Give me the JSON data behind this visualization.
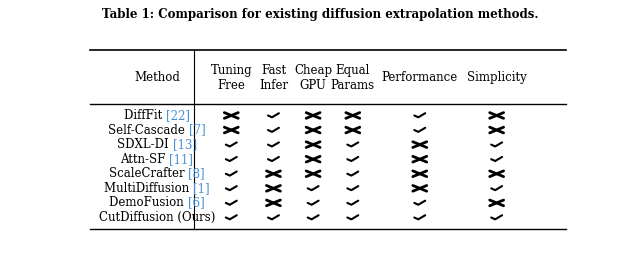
{
  "title": "Table 1: Comparison for existing diffusion extrapolation methods.",
  "col_headers": [
    "Method",
    "Tuning\nFree",
    "Fast\nInfer",
    "Cheap\nGPU",
    "Equal\nParams",
    "Performance",
    "Simplicity"
  ],
  "methods": [
    [
      "DiffFit ",
      "[22]"
    ],
    [
      "Self-Cascade ",
      "[7]"
    ],
    [
      "SDXL-DI ",
      "[13]"
    ],
    [
      "Attn-SF ",
      "[11]"
    ],
    [
      "ScaleCrafter ",
      "[8]"
    ],
    [
      "MultiDiffusion ",
      "[1]"
    ],
    [
      "DemoFusion ",
      "[6]"
    ],
    [
      "CutDiffusion (Ours)",
      ""
    ]
  ],
  "data": [
    [
      false,
      true,
      false,
      false,
      true,
      false
    ],
    [
      false,
      true,
      false,
      false,
      true,
      false
    ],
    [
      true,
      true,
      false,
      true,
      false,
      true
    ],
    [
      true,
      true,
      false,
      true,
      false,
      true
    ],
    [
      true,
      false,
      false,
      true,
      false,
      false
    ],
    [
      true,
      false,
      true,
      true,
      false,
      true
    ],
    [
      true,
      false,
      true,
      true,
      true,
      false
    ],
    [
      true,
      true,
      true,
      true,
      true,
      true
    ]
  ],
  "bg_color": "#ffffff",
  "text_color": "#000000",
  "cite_color": "#4a90d9",
  "symbol_color": "#000000",
  "title_fontsize": 8.5,
  "header_fontsize": 8.5,
  "method_fontsize": 8.5,
  "symbol_fontsize": 12,
  "fig_width": 6.4,
  "fig_height": 2.65,
  "dpi": 100
}
